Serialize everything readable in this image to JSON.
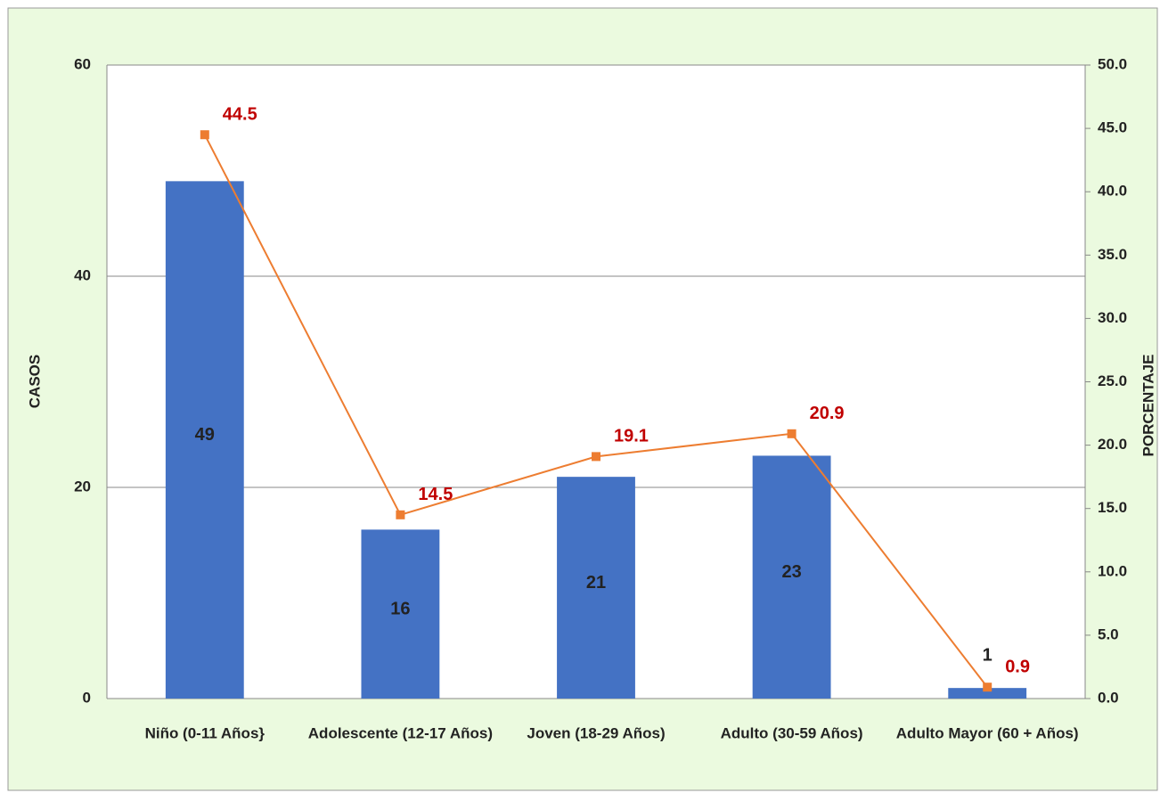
{
  "chart_data": {
    "type": "bar",
    "categories": [
      "Niño (0-11 Años}",
      "Adolescente (12-17 Años)",
      "Joven (18-29 Años)",
      "Adulto (30-59 Años)",
      "Adulto Mayor (60 + Años)"
    ],
    "y_label": "CASOS",
    "y2_label": "PORCENTAJE",
    "ylim": [
      0,
      60
    ],
    "yticks": [
      0,
      20,
      40,
      60
    ],
    "y2lim": [
      0,
      50
    ],
    "y2ticks": [
      {
        "value": 0,
        "label": "0.0"
      },
      {
        "value": 5,
        "label": "5.0"
      },
      {
        "value": 10,
        "label": "10.0"
      },
      {
        "value": 15,
        "label": "15.0"
      },
      {
        "value": 20,
        "label": "20.0"
      },
      {
        "value": 25,
        "label": "25.0"
      },
      {
        "value": 30,
        "label": "30.0"
      },
      {
        "value": 35,
        "label": "35.0"
      },
      {
        "value": 40,
        "label": "40.0"
      },
      {
        "value": 45,
        "label": "45.0"
      },
      {
        "value": 50,
        "label": "50.0"
      }
    ],
    "grid": true,
    "series": [
      {
        "type": "bar",
        "color": "#4472c4",
        "values": [
          49,
          16,
          21,
          23,
          1
        ]
      },
      {
        "type": "line",
        "axis": "y2",
        "color": "#ed7d31",
        "label_color": "#c00000",
        "values": [
          44.5,
          14.5,
          19.1,
          20.9,
          0.9
        ]
      }
    ]
  }
}
